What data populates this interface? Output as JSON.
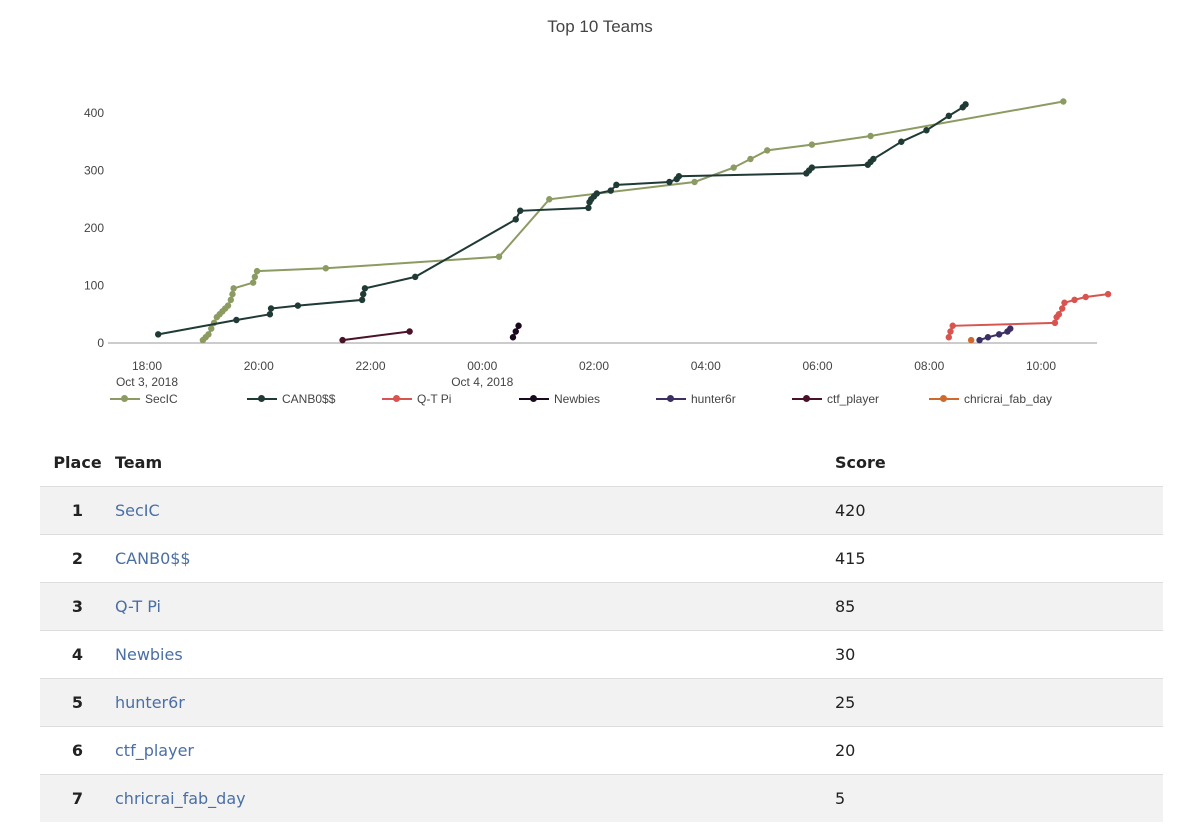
{
  "chart_data": {
    "type": "line",
    "title": "Top 10 Teams",
    "xlabel": "",
    "ylabel": "",
    "x_unit": "hours since Oct 3, 2018 18:00",
    "x_ticks": [
      {
        "h": 0,
        "label": "18:00",
        "sub": "Oct 3, 2018"
      },
      {
        "h": 2,
        "label": "20:00",
        "sub": ""
      },
      {
        "h": 4,
        "label": "22:00",
        "sub": ""
      },
      {
        "h": 6,
        "label": "00:00",
        "sub": "Oct 4, 2018"
      },
      {
        "h": 8,
        "label": "02:00",
        "sub": ""
      },
      {
        "h": 10,
        "label": "04:00",
        "sub": ""
      },
      {
        "h": 12,
        "label": "06:00",
        "sub": ""
      },
      {
        "h": 14,
        "label": "08:00",
        "sub": ""
      },
      {
        "h": 16,
        "label": "10:00",
        "sub": ""
      }
    ],
    "y_ticks": [
      0,
      100,
      200,
      300,
      400
    ],
    "xlim": [
      -0.63,
      17.07
    ],
    "ylim": [
      0,
      440
    ],
    "grid": false,
    "legend_position": "bottom",
    "series": [
      {
        "name": "SecIC",
        "color": "#8c9b62",
        "points": [
          [
            1.0,
            5
          ],
          [
            1.05,
            10
          ],
          [
            1.1,
            15
          ],
          [
            1.15,
            25
          ],
          [
            1.2,
            35
          ],
          [
            1.25,
            45
          ],
          [
            1.3,
            50
          ],
          [
            1.35,
            55
          ],
          [
            1.4,
            60
          ],
          [
            1.45,
            65
          ],
          [
            1.5,
            75
          ],
          [
            1.53,
            85
          ],
          [
            1.55,
            95
          ],
          [
            1.9,
            105
          ],
          [
            1.93,
            115
          ],
          [
            1.97,
            125
          ],
          [
            3.2,
            130
          ],
          [
            6.3,
            150
          ],
          [
            7.2,
            250
          ],
          [
            9.8,
            280
          ],
          [
            10.5,
            305
          ],
          [
            10.8,
            320
          ],
          [
            11.1,
            335
          ],
          [
            11.9,
            345
          ],
          [
            12.95,
            360
          ],
          [
            16.4,
            420
          ]
        ]
      },
      {
        "name": "CANB0$$",
        "color": "#203a35",
        "points": [
          [
            0.2,
            15
          ],
          [
            1.6,
            40
          ],
          [
            2.2,
            50
          ],
          [
            2.22,
            60
          ],
          [
            2.7,
            65
          ],
          [
            3.85,
            75
          ],
          [
            3.87,
            85
          ],
          [
            3.9,
            95
          ],
          [
            4.8,
            115
          ],
          [
            6.6,
            215
          ],
          [
            6.68,
            230
          ],
          [
            7.9,
            235
          ],
          [
            7.92,
            245
          ],
          [
            7.95,
            250
          ],
          [
            8.0,
            255
          ],
          [
            8.05,
            260
          ],
          [
            8.3,
            265
          ],
          [
            8.4,
            275
          ],
          [
            9.35,
            280
          ],
          [
            9.48,
            285
          ],
          [
            9.52,
            290
          ],
          [
            11.8,
            295
          ],
          [
            11.85,
            300
          ],
          [
            11.9,
            305
          ],
          [
            12.9,
            310
          ],
          [
            12.95,
            315
          ],
          [
            13.0,
            320
          ],
          [
            13.5,
            350
          ],
          [
            13.95,
            370
          ],
          [
            14.35,
            395
          ],
          [
            14.6,
            410
          ],
          [
            14.65,
            415
          ]
        ]
      },
      {
        "name": "Q-T Pi",
        "color": "#d9534f",
        "points": [
          [
            14.35,
            10
          ],
          [
            14.38,
            20
          ],
          [
            14.42,
            30
          ],
          [
            16.25,
            35
          ],
          [
            16.28,
            45
          ],
          [
            16.32,
            50
          ],
          [
            16.38,
            60
          ],
          [
            16.42,
            70
          ],
          [
            16.6,
            75
          ],
          [
            16.8,
            80
          ],
          [
            17.2,
            85
          ]
        ]
      },
      {
        "name": "Newbies",
        "color": "#1a0a1f",
        "points": [
          [
            6.55,
            10
          ],
          [
            6.6,
            20
          ],
          [
            6.65,
            30
          ]
        ]
      },
      {
        "name": "hunter6r",
        "color": "#3b2f63",
        "points": [
          [
            14.9,
            5
          ],
          [
            15.05,
            10
          ],
          [
            15.25,
            15
          ],
          [
            15.4,
            20
          ],
          [
            15.45,
            25
          ]
        ]
      },
      {
        "name": "ctf_player",
        "color": "#4a1228",
        "points": [
          [
            3.5,
            5
          ],
          [
            4.7,
            20
          ]
        ]
      },
      {
        "name": "chricrai_fab_day",
        "color": "#d0692d",
        "points": [
          [
            14.75,
            5
          ]
        ]
      }
    ]
  },
  "table": {
    "headers": {
      "place": "Place",
      "team": "Team",
      "score": "Score"
    },
    "rows": [
      {
        "place": "1",
        "team": "SecIC",
        "score": "420"
      },
      {
        "place": "2",
        "team": "CANB0$$",
        "score": "415"
      },
      {
        "place": "3",
        "team": "Q-T Pi",
        "score": "85"
      },
      {
        "place": "4",
        "team": "Newbies",
        "score": "30"
      },
      {
        "place": "5",
        "team": "hunter6r",
        "score": "25"
      },
      {
        "place": "6",
        "team": "ctf_player",
        "score": "20"
      },
      {
        "place": "7",
        "team": "chricrai_fab_day",
        "score": "5"
      }
    ]
  }
}
